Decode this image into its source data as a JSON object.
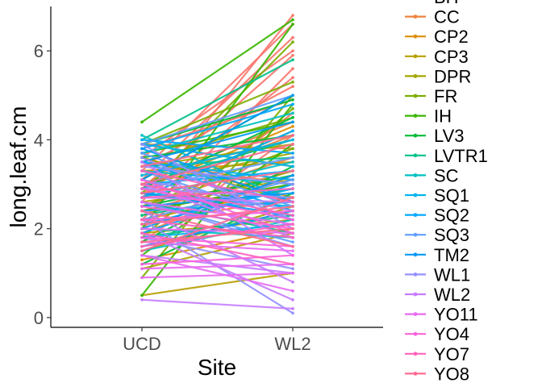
{
  "chart_data": {
    "type": "line",
    "title": "",
    "xlabel": "Site",
    "ylabel": "long.leaf.cm",
    "categories": [
      "UCD",
      "WL2"
    ],
    "ylim": [
      -0.22,
      7.0
    ],
    "yticks": [
      0,
      2,
      4,
      6
    ],
    "grid": false,
    "legend_position": "right",
    "legend": [
      {
        "name": "BH",
        "color": "#F8766D"
      },
      {
        "name": "CC",
        "color": "#EC823C"
      },
      {
        "name": "CP2",
        "color": "#DC8E00"
      },
      {
        "name": "CP3",
        "color": "#B79F00"
      },
      {
        "name": "DPR",
        "color": "#A3A500"
      },
      {
        "name": "FR",
        "color": "#7CAE00"
      },
      {
        "name": "IH",
        "color": "#39B600"
      },
      {
        "name": "LV3",
        "color": "#00BA38"
      },
      {
        "name": "LVTR1",
        "color": "#00C08B"
      },
      {
        "name": "SC",
        "color": "#00BFC4"
      },
      {
        "name": "SQ1",
        "color": "#00B4F0"
      },
      {
        "name": "SQ2",
        "color": "#00A9FF"
      },
      {
        "name": "SQ3",
        "color": "#619CFF"
      },
      {
        "name": "TM2",
        "color": "#0099F8"
      },
      {
        "name": "WL1",
        "color": "#9590FF"
      },
      {
        "name": "WL2",
        "color": "#C77CFF"
      },
      {
        "name": "YO11",
        "color": "#E76BF3"
      },
      {
        "name": "YO4",
        "color": "#FA62DB"
      },
      {
        "name": "YO7",
        "color": "#FF62BC"
      },
      {
        "name": "YO8",
        "color": "#FF6C91"
      }
    ],
    "series": [
      {
        "name": "BH",
        "values": [
          [
            2.6,
            6.8
          ],
          [
            3.1,
            6.3
          ],
          [
            2.2,
            5.6
          ],
          [
            3.4,
            5.2
          ],
          [
            2.0,
            4.6
          ],
          [
            3.6,
            6.0
          ],
          [
            2.9,
            5.9
          ],
          [
            1.7,
            4.1
          ],
          [
            2.4,
            3.3
          ],
          [
            3.8,
            4.9
          ],
          [
            2.7,
            5.4
          ],
          [
            3.3,
            6.6
          ]
        ]
      },
      {
        "name": "CC",
        "values": [
          [
            2.5,
            3.6
          ],
          [
            3.0,
            4.4
          ],
          [
            2.1,
            2.7
          ],
          [
            3.5,
            3.0
          ],
          [
            1.9,
            3.2
          ],
          [
            2.8,
            4.1
          ],
          [
            3.9,
            3.8
          ]
        ]
      },
      {
        "name": "CP2",
        "values": [
          [
            2.2,
            2.9
          ],
          [
            3.3,
            3.5
          ],
          [
            1.6,
            2.4
          ],
          [
            2.9,
            4.3
          ],
          [
            2.4,
            3.0
          ],
          [
            3.6,
            2.7
          ],
          [
            1.3,
            2.0
          ]
        ]
      },
      {
        "name": "CP3",
        "values": [
          [
            0.5,
            1.0
          ],
          [
            2.6,
            3.1
          ],
          [
            3.2,
            4.0
          ],
          [
            1.9,
            2.2
          ],
          [
            3.9,
            3.4
          ],
          [
            1.1,
            1.9
          ]
        ]
      },
      {
        "name": "DPR",
        "values": [
          [
            3.0,
            3.7
          ],
          [
            2.3,
            3.3
          ],
          [
            3.6,
            2.6
          ],
          [
            1.5,
            2.5
          ],
          [
            2.7,
            4.2
          ],
          [
            3.4,
            3.9
          ]
        ]
      },
      {
        "name": "FR",
        "values": [
          [
            0.9,
            5.0
          ],
          [
            3.9,
            5.3
          ],
          [
            2.8,
            6.2
          ],
          [
            1.8,
            4.7
          ],
          [
            3.5,
            4.5
          ],
          [
            2.5,
            3.8
          ]
        ]
      },
      {
        "name": "IH",
        "values": [
          [
            4.4,
            6.7
          ],
          [
            0.5,
            4.8
          ],
          [
            2.0,
            6.6
          ],
          [
            3.1,
            5.0
          ],
          [
            1.4,
            3.9
          ],
          [
            3.7,
            4.4
          ],
          [
            2.4,
            3.0
          ]
        ]
      },
      {
        "name": "LV3",
        "values": [
          [
            2.9,
            4.5
          ],
          [
            3.6,
            4.1
          ],
          [
            1.7,
            3.4
          ],
          [
            3.9,
            4.9
          ],
          [
            2.5,
            3.2
          ],
          [
            1.2,
            2.8
          ]
        ]
      },
      {
        "name": "LVTR1",
        "values": [
          [
            4.0,
            5.8
          ],
          [
            2.3,
            2.9
          ],
          [
            3.4,
            3.6
          ],
          [
            1.8,
            2.3
          ],
          [
            3.0,
            4.0
          ],
          [
            2.6,
            1.9
          ]
        ]
      },
      {
        "name": "SC",
        "values": [
          [
            4.1,
            2.6
          ],
          [
            3.3,
            3.0
          ],
          [
            2.7,
            3.5
          ],
          [
            2.0,
            1.8
          ],
          [
            3.7,
            4.6
          ],
          [
            1.5,
            2.2
          ]
        ]
      },
      {
        "name": "SQ1",
        "values": [
          [
            3.9,
            3.4
          ],
          [
            2.8,
            2.5
          ],
          [
            3.2,
            4.0
          ],
          [
            2.1,
            2.9
          ],
          [
            3.5,
            3.1
          ],
          [
            1.8,
            2.1
          ]
        ]
      },
      {
        "name": "SQ2",
        "values": [
          [
            3.8,
            4.8
          ],
          [
            3.0,
            3.3
          ],
          [
            2.4,
            2.6
          ],
          [
            3.5,
            2.4
          ],
          [
            2.7,
            4.2
          ],
          [
            1.9,
            3.0
          ],
          [
            4.0,
            3.7
          ]
        ]
      },
      {
        "name": "SQ3",
        "values": [
          [
            3.7,
            2.5
          ],
          [
            2.9,
            3.6
          ],
          [
            3.3,
            2.2
          ],
          [
            2.2,
            3.1
          ],
          [
            3.9,
            5.0
          ],
          [
            2.6,
            1.7
          ]
        ]
      },
      {
        "name": "TM2",
        "values": [
          [
            3.5,
            4.4
          ],
          [
            2.5,
            2.8
          ],
          [
            3.1,
            5.0
          ],
          [
            2.8,
            2.3
          ],
          [
            2.0,
            3.2
          ],
          [
            3.8,
            2.6
          ],
          [
            1.6,
            2.4
          ]
        ]
      },
      {
        "name": "WL1",
        "values": [
          [
            3.9,
            2.0
          ],
          [
            3.1,
            2.4
          ],
          [
            2.6,
            1.6
          ],
          [
            3.4,
            3.0
          ],
          [
            2.2,
            0.1
          ],
          [
            2.9,
            2.7
          ],
          [
            1.8,
            1.1
          ],
          [
            3.6,
            2.2
          ]
        ]
      },
      {
        "name": "WL2",
        "values": [
          [
            0.4,
            0.2
          ],
          [
            2.4,
            0.8
          ],
          [
            3.0,
            1.8
          ],
          [
            1.9,
            0.4
          ],
          [
            2.7,
            2.6
          ],
          [
            3.5,
            1.4
          ],
          [
            1.4,
            1.0
          ]
        ]
      },
      {
        "name": "YO11",
        "values": [
          [
            1.4,
            0.6
          ],
          [
            2.0,
            1.9
          ],
          [
            1.1,
            1.2
          ],
          [
            2.6,
            2.1
          ],
          [
            1.7,
            1.5
          ],
          [
            0.9,
            1.0
          ]
        ]
      },
      {
        "name": "YO4",
        "values": [
          [
            2.5,
            2.0
          ],
          [
            1.8,
            1.6
          ],
          [
            2.9,
            2.2
          ],
          [
            1.2,
            1.4
          ],
          [
            2.2,
            2.4
          ],
          [
            3.1,
            1.9
          ]
        ]
      },
      {
        "name": "YO7",
        "values": [
          [
            3.0,
            2.3
          ],
          [
            2.2,
            1.8
          ],
          [
            1.6,
            2.1
          ],
          [
            2.7,
            2.9
          ],
          [
            1.9,
            1.2
          ],
          [
            3.3,
            2.6
          ]
        ]
      },
      {
        "name": "YO8",
        "values": [
          [
            2.8,
            3.3
          ],
          [
            2.1,
            2.5
          ],
          [
            3.4,
            4.1
          ],
          [
            1.7,
            2.0
          ],
          [
            2.4,
            1.6
          ],
          [
            3.0,
            3.9
          ],
          [
            1.5,
            2.7
          ]
        ]
      }
    ]
  }
}
